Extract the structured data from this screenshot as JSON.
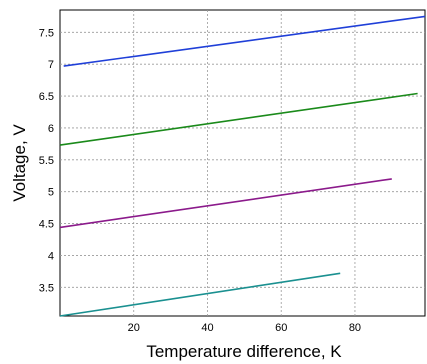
{
  "chart_data": {
    "type": "line",
    "title": "",
    "xlabel": "Temperature difference, K",
    "ylabel": "Voltage, V",
    "xlim": [
      0,
      99
    ],
    "ylim": [
      3.05,
      7.85
    ],
    "x_ticks": [
      20,
      40,
      60,
      80
    ],
    "x_tick_labels": [
      "20",
      "40",
      "60",
      "80"
    ],
    "y_ticks": [
      3.5,
      4,
      4.5,
      5,
      5.5,
      6,
      6.5,
      7,
      7.5
    ],
    "y_tick_labels": [
      "3.5",
      "4",
      "4.5",
      "5",
      "5.5",
      "6",
      "6.5",
      "7",
      "7.5"
    ],
    "grid": true,
    "legend": "none",
    "series": [
      {
        "color": "#1f3fd8",
        "x": [
          1,
          99
        ],
        "y": [
          6.97,
          7.75
        ]
      },
      {
        "color": "#1a8a1a",
        "x": [
          0,
          97
        ],
        "y": [
          5.73,
          6.54
        ]
      },
      {
        "color": "#8b1a8b",
        "x": [
          0,
          90
        ],
        "y": [
          4.44,
          5.2
        ]
      },
      {
        "color": "#1a9090",
        "x": [
          0,
          76
        ],
        "y": [
          3.05,
          3.72
        ]
      }
    ]
  }
}
